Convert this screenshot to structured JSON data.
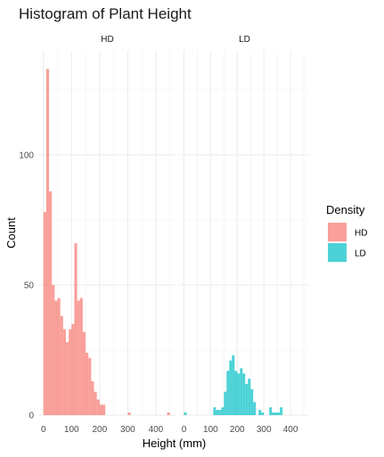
{
  "chart_data": {
    "type": "bar",
    "title": "Histogram of Plant Height",
    "xlabel": "Height (mm)",
    "ylabel": "Count",
    "xlim": [
      -15,
      470
    ],
    "ylim": [
      0,
      140
    ],
    "x_ticks": [
      "0",
      "100",
      "200",
      "300",
      "400"
    ],
    "y_ticks": [
      "0",
      "50",
      "100"
    ],
    "grid": true,
    "bin_width": 10,
    "legend": {
      "title": "Density",
      "position": "right",
      "items": [
        {
          "label": "HD",
          "color": "#F8766D"
        },
        {
          "label": "LD",
          "color": "#00BFC4"
        }
      ]
    },
    "panels": [
      {
        "strip": "HD",
        "color": "#F8766D",
        "series": {
          "name": "HD",
          "bin_left": [
            0,
            10,
            20,
            30,
            40,
            50,
            60,
            70,
            80,
            90,
            100,
            110,
            120,
            130,
            140,
            150,
            160,
            170,
            180,
            190,
            200,
            210,
            220,
            230,
            240,
            250,
            260,
            270,
            280,
            290,
            300,
            310,
            320,
            330,
            340,
            350,
            360,
            370,
            380,
            390,
            400,
            410,
            420,
            430,
            440,
            450
          ],
          "counts": [
            78,
            133,
            86,
            50,
            44,
            45,
            38,
            33,
            28,
            33,
            35,
            66,
            44,
            45,
            32,
            24,
            22,
            13,
            9,
            6,
            4,
            4,
            0,
            0,
            0,
            0,
            0,
            0,
            0,
            0,
            1,
            0,
            0,
            0,
            0,
            0,
            0,
            0,
            0,
            0,
            0,
            0,
            0,
            0,
            1,
            0
          ]
        }
      },
      {
        "strip": "LD",
        "color": "#00BFC4",
        "series": {
          "name": "LD",
          "bin_left": [
            0,
            10,
            20,
            30,
            40,
            50,
            60,
            70,
            80,
            90,
            100,
            110,
            120,
            130,
            140,
            150,
            160,
            170,
            180,
            190,
            200,
            210,
            220,
            230,
            240,
            250,
            260,
            270,
            280,
            290,
            300,
            310,
            320,
            330,
            340,
            350,
            360,
            370,
            380,
            390,
            400,
            410,
            420,
            430,
            440,
            450
          ],
          "counts": [
            1,
            0,
            0,
            0,
            0,
            0,
            0,
            0,
            0,
            0,
            0,
            3,
            2,
            2,
            3,
            9,
            17,
            21,
            23,
            17,
            16,
            18,
            16,
            12,
            14,
            10,
            5,
            0,
            2,
            1,
            0,
            0,
            3,
            1,
            1,
            1,
            3,
            0,
            0,
            0,
            0,
            0,
            0,
            0,
            0,
            0
          ]
        }
      }
    ]
  }
}
